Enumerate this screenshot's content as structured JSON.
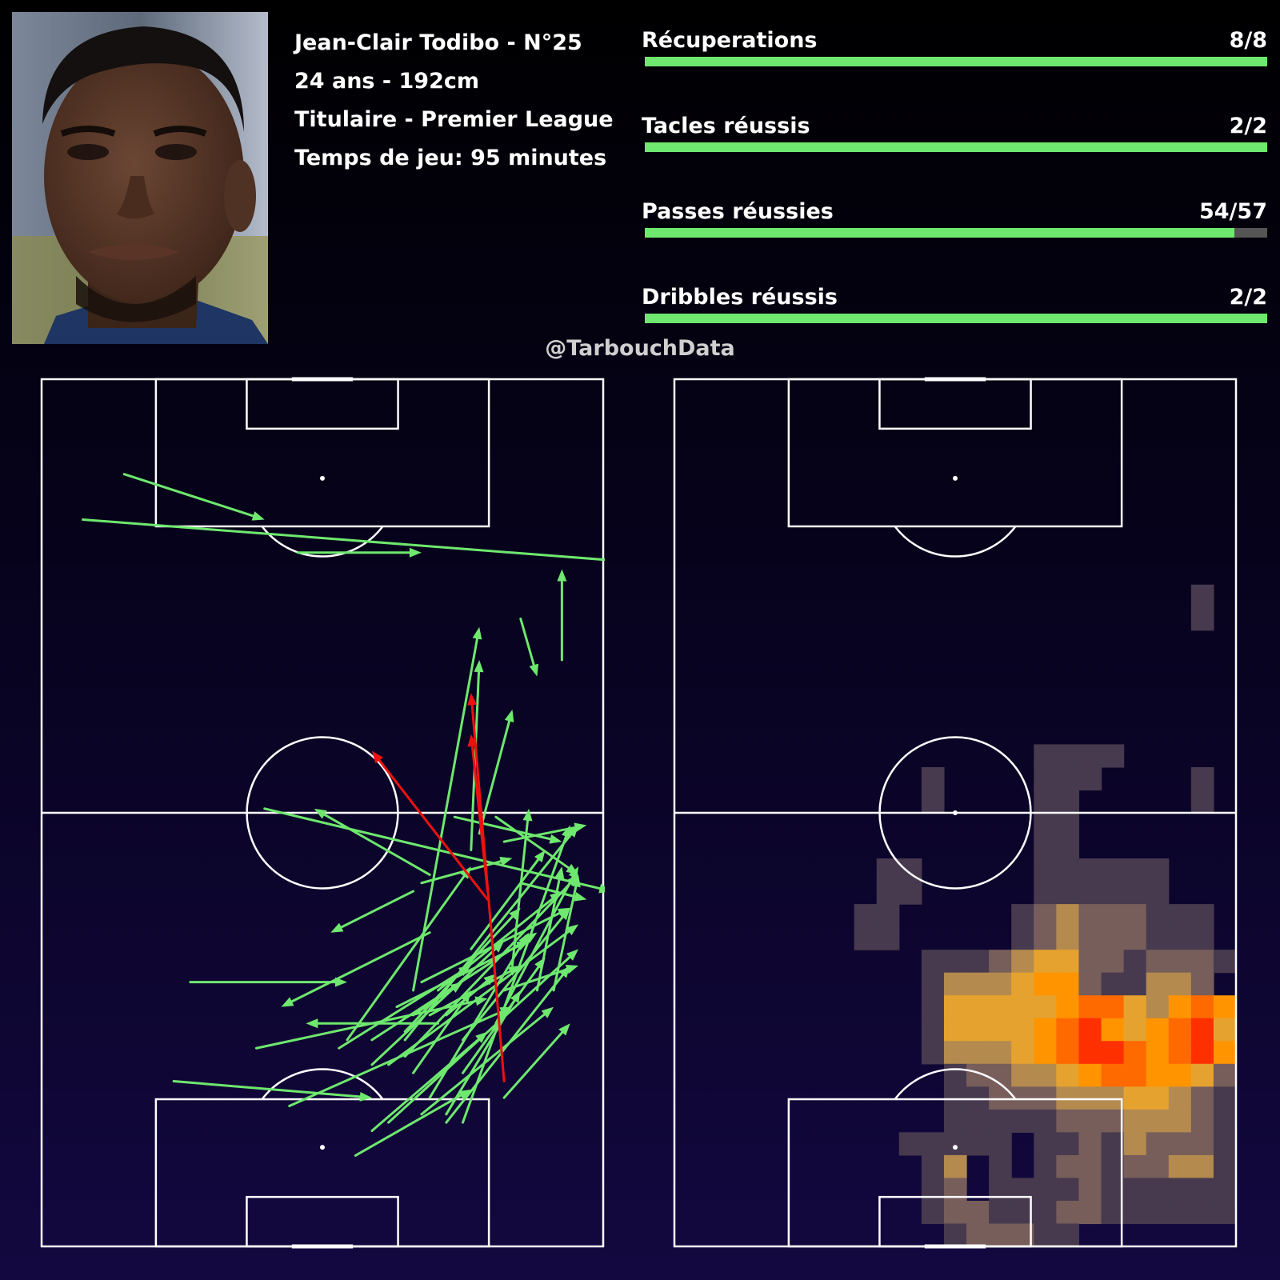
{
  "player": {
    "line1": "Jean-Clair Todibo - N°25",
    "line2": "24 ans - 192cm",
    "line3": "Titulaire - Premier League",
    "line4": "Temps de jeu: 95 minutes"
  },
  "stats": [
    {
      "label": "Récuperations",
      "value": "8/8",
      "fraction": 1.0
    },
    {
      "label": "Tacles réussis",
      "value": "2/2",
      "fraction": 1.0
    },
    {
      "label": "Passes réussies",
      "value": "54/57",
      "fraction": 0.947
    },
    {
      "label": "Dribbles réussis",
      "value": "2/2",
      "fraction": 1.0
    }
  ],
  "watermark": "@TarbouchData",
  "colors": {
    "success": "#6ee86e",
    "fail": "#ee1111",
    "track": "#555555",
    "pitch_lines": "#ffffff"
  },
  "chart_data": [
    {
      "type": "pass-map",
      "pitch": "vertical, 68 x 105, attacking upward",
      "successful_passes": [
        [
          5,
          17,
          70,
          22
        ],
        [
          10,
          11.5,
          27,
          17
        ],
        [
          31,
          21,
          46,
          21
        ],
        [
          27,
          52,
          69,
          62
        ],
        [
          47,
          60,
          33,
          52
        ],
        [
          47,
          67,
          29,
          76
        ],
        [
          18,
          73,
          37,
          73
        ],
        [
          48,
          78,
          32,
          78
        ],
        [
          26,
          81,
          54,
          75
        ],
        [
          16,
          85,
          40,
          87
        ],
        [
          38,
          94,
          52,
          86
        ],
        [
          53,
          55,
          57,
          40
        ],
        [
          52,
          57,
          53,
          34
        ],
        [
          58,
          29,
          60,
          36
        ],
        [
          63,
          34,
          63,
          23
        ],
        [
          45,
          74,
          53,
          30
        ],
        [
          45,
          62,
          35,
          67
        ],
        [
          45,
          77,
          51,
          73
        ],
        [
          46,
          61,
          57,
          58
        ],
        [
          49,
          77,
          55,
          72
        ],
        [
          50,
          53,
          63,
          56
        ],
        [
          55,
          53,
          65,
          60
        ],
        [
          56,
          56,
          66,
          54
        ],
        [
          58,
          61,
          66,
          63
        ],
        [
          43,
          76,
          59,
          68
        ],
        [
          46,
          73,
          64,
          64
        ],
        [
          40,
          83,
          56,
          68
        ],
        [
          51,
          80,
          64,
          64
        ],
        [
          36,
          81,
          52,
          71
        ],
        [
          40,
          80,
          60,
          67
        ],
        [
          44,
          82,
          65,
          60
        ],
        [
          37,
          80,
          52,
          59
        ],
        [
          42,
          83,
          65,
          66
        ],
        [
          52,
          69,
          61,
          57
        ],
        [
          47,
          77,
          58,
          71
        ],
        [
          44,
          79,
          58,
          64
        ],
        [
          47,
          87,
          59,
          67
        ],
        [
          49,
          89,
          58,
          74
        ],
        [
          45,
          84,
          52,
          74
        ],
        [
          40,
          91,
          54,
          79
        ],
        [
          42,
          90,
          65,
          69
        ],
        [
          46,
          89,
          62,
          76
        ],
        [
          51,
          84,
          61,
          70
        ],
        [
          30,
          88,
          57,
          76
        ],
        [
          44,
          80,
          65,
          54
        ],
        [
          48,
          74,
          63,
          62
        ],
        [
          49,
          90,
          64,
          71
        ],
        [
          51,
          90,
          64,
          54
        ],
        [
          56,
          87,
          64,
          78
        ],
        [
          56,
          74,
          65,
          71
        ],
        [
          55,
          78,
          65,
          59
        ],
        [
          62,
          74,
          65,
          60
        ],
        [
          60,
          74,
          63,
          59
        ],
        [
          57,
          71,
          59,
          52
        ]
      ],
      "failed_passes": [
        [
          54,
          62,
          52,
          43
        ],
        [
          56,
          85,
          52,
          38
        ],
        [
          54,
          63,
          40,
          45
        ]
      ]
    },
    {
      "type": "heatmap",
      "pitch": "vertical, 68 x 105, attacking upward",
      "grid": {
        "cols": 25,
        "rows": 38
      },
      "scale": [
        "#473a4e",
        "#775e5b",
        "#b48a4f",
        "#e6a22e",
        "#ff9400",
        "#ff6a00",
        "#ff3000",
        "#ff0000"
      ],
      "cells": [
        [
          23,
          9,
          1
        ],
        [
          23,
          10,
          1
        ],
        [
          16,
          16,
          1
        ],
        [
          17,
          16,
          1
        ],
        [
          18,
          16,
          1
        ],
        [
          19,
          16,
          1
        ],
        [
          16,
          17,
          1
        ],
        [
          17,
          17,
          1
        ],
        [
          18,
          17,
          1
        ],
        [
          11,
          17,
          1
        ],
        [
          23,
          17,
          1
        ],
        [
          16,
          18,
          1
        ],
        [
          17,
          18,
          1
        ],
        [
          11,
          18,
          1
        ],
        [
          23,
          18,
          1
        ],
        [
          16,
          19,
          1
        ],
        [
          17,
          19,
          1
        ],
        [
          16,
          20,
          1
        ],
        [
          17,
          20,
          1
        ],
        [
          16,
          21,
          1
        ],
        [
          17,
          21,
          1
        ],
        [
          18,
          21,
          1
        ],
        [
          19,
          21,
          1
        ],
        [
          20,
          21,
          1
        ],
        [
          21,
          21,
          1
        ],
        [
          9,
          21,
          1
        ],
        [
          10,
          21,
          1
        ],
        [
          16,
          22,
          1
        ],
        [
          17,
          22,
          1
        ],
        [
          18,
          22,
          1
        ],
        [
          19,
          22,
          1
        ],
        [
          20,
          22,
          1
        ],
        [
          21,
          22,
          1
        ],
        [
          9,
          22,
          1
        ],
        [
          10,
          22,
          1
        ],
        [
          15,
          23,
          1
        ],
        [
          16,
          23,
          2
        ],
        [
          17,
          23,
          3
        ],
        [
          18,
          23,
          2
        ],
        [
          19,
          23,
          2
        ],
        [
          20,
          23,
          2
        ],
        [
          21,
          23,
          1
        ],
        [
          22,
          23,
          1
        ],
        [
          23,
          23,
          1
        ],
        [
          8,
          23,
          1
        ],
        [
          9,
          23,
          1
        ],
        [
          15,
          24,
          1
        ],
        [
          16,
          24,
          2
        ],
        [
          17,
          24,
          3
        ],
        [
          18,
          24,
          2
        ],
        [
          19,
          24,
          2
        ],
        [
          20,
          24,
          2
        ],
        [
          21,
          24,
          1
        ],
        [
          22,
          24,
          1
        ],
        [
          23,
          24,
          1
        ],
        [
          8,
          24,
          1
        ],
        [
          9,
          24,
          1
        ],
        [
          11,
          25,
          1
        ],
        [
          12,
          25,
          1
        ],
        [
          13,
          25,
          1
        ],
        [
          14,
          25,
          2
        ],
        [
          15,
          25,
          3
        ],
        [
          16,
          25,
          4
        ],
        [
          17,
          25,
          4
        ],
        [
          18,
          25,
          2
        ],
        [
          19,
          25,
          2
        ],
        [
          20,
          25,
          1
        ],
        [
          21,
          25,
          2
        ],
        [
          22,
          25,
          2
        ],
        [
          23,
          25,
          2
        ],
        [
          24,
          25,
          1
        ],
        [
          11,
          26,
          1
        ],
        [
          12,
          26,
          3
        ],
        [
          13,
          26,
          3
        ],
        [
          14,
          26,
          3
        ],
        [
          15,
          26,
          4
        ],
        [
          16,
          26,
          5
        ],
        [
          17,
          26,
          5
        ],
        [
          18,
          26,
          2
        ],
        [
          19,
          26,
          1
        ],
        [
          20,
          26,
          1
        ],
        [
          21,
          26,
          3
        ],
        [
          22,
          26,
          3
        ],
        [
          23,
          26,
          2
        ],
        [
          11,
          27,
          1
        ],
        [
          12,
          27,
          4
        ],
        [
          13,
          27,
          4
        ],
        [
          14,
          27,
          4
        ],
        [
          15,
          27,
          4
        ],
        [
          16,
          27,
          4
        ],
        [
          17,
          27,
          5
        ],
        [
          18,
          27,
          6
        ],
        [
          19,
          27,
          6
        ],
        [
          20,
          27,
          4
        ],
        [
          21,
          27,
          3
        ],
        [
          22,
          27,
          5
        ],
        [
          23,
          27,
          6
        ],
        [
          24,
          27,
          5
        ],
        [
          11,
          28,
          1
        ],
        [
          12,
          28,
          4
        ],
        [
          13,
          28,
          4
        ],
        [
          14,
          28,
          4
        ],
        [
          15,
          28,
          4
        ],
        [
          16,
          28,
          5
        ],
        [
          17,
          28,
          6
        ],
        [
          18,
          28,
          7
        ],
        [
          19,
          28,
          5
        ],
        [
          20,
          28,
          4
        ],
        [
          21,
          28,
          5
        ],
        [
          22,
          28,
          6
        ],
        [
          23,
          28,
          7
        ],
        [
          24,
          28,
          4
        ],
        [
          11,
          29,
          1
        ],
        [
          12,
          29,
          3
        ],
        [
          13,
          29,
          3
        ],
        [
          14,
          29,
          3
        ],
        [
          15,
          29,
          4
        ],
        [
          16,
          29,
          5
        ],
        [
          17,
          29,
          6
        ],
        [
          18,
          29,
          7
        ],
        [
          19,
          29,
          7
        ],
        [
          20,
          29,
          6
        ],
        [
          21,
          29,
          5
        ],
        [
          22,
          29,
          6
        ],
        [
          23,
          29,
          7
        ],
        [
          24,
          29,
          5
        ],
        [
          12,
          30,
          1
        ],
        [
          13,
          30,
          2
        ],
        [
          14,
          30,
          2
        ],
        [
          15,
          30,
          3
        ],
        [
          16,
          30,
          3
        ],
        [
          17,
          30,
          4
        ],
        [
          18,
          30,
          5
        ],
        [
          19,
          30,
          6
        ],
        [
          20,
          30,
          6
        ],
        [
          21,
          30,
          5
        ],
        [
          22,
          30,
          5
        ],
        [
          23,
          30,
          4
        ],
        [
          24,
          30,
          2
        ],
        [
          12,
          31,
          1
        ],
        [
          13,
          31,
          1
        ],
        [
          14,
          31,
          2
        ],
        [
          15,
          31,
          2
        ],
        [
          16,
          31,
          2
        ],
        [
          17,
          31,
          3
        ],
        [
          18,
          31,
          3
        ],
        [
          19,
          31,
          3
        ],
        [
          20,
          31,
          4
        ],
        [
          21,
          31,
          4
        ],
        [
          22,
          31,
          3
        ],
        [
          23,
          31,
          2
        ],
        [
          24,
          31,
          1
        ],
        [
          12,
          32,
          1
        ],
        [
          13,
          32,
          1
        ],
        [
          14,
          32,
          1
        ],
        [
          15,
          32,
          1
        ],
        [
          16,
          32,
          1
        ],
        [
          17,
          32,
          2
        ],
        [
          18,
          32,
          2
        ],
        [
          19,
          32,
          2
        ],
        [
          20,
          32,
          3
        ],
        [
          21,
          32,
          3
        ],
        [
          22,
          32,
          3
        ],
        [
          23,
          32,
          2
        ],
        [
          24,
          32,
          1
        ],
        [
          10,
          33,
          1
        ],
        [
          11,
          33,
          1
        ],
        [
          12,
          33,
          1
        ],
        [
          13,
          33,
          1
        ],
        [
          14,
          33,
          1
        ],
        [
          16,
          33,
          1
        ],
        [
          17,
          33,
          1
        ],
        [
          18,
          33,
          2
        ],
        [
          19,
          33,
          1
        ],
        [
          20,
          33,
          3
        ],
        [
          21,
          33,
          2
        ],
        [
          22,
          33,
          2
        ],
        [
          23,
          33,
          2
        ],
        [
          24,
          33,
          1
        ],
        [
          11,
          34,
          1
        ],
        [
          12,
          34,
          3
        ],
        [
          14,
          34,
          1
        ],
        [
          16,
          34,
          1
        ],
        [
          17,
          34,
          2
        ],
        [
          18,
          34,
          2
        ],
        [
          19,
          34,
          1
        ],
        [
          20,
          34,
          2
        ],
        [
          21,
          34,
          2
        ],
        [
          22,
          34,
          3
        ],
        [
          23,
          34,
          3
        ],
        [
          24,
          34,
          1
        ],
        [
          11,
          35,
          1
        ],
        [
          12,
          35,
          2
        ],
        [
          14,
          35,
          1
        ],
        [
          15,
          35,
          1
        ],
        [
          16,
          35,
          1
        ],
        [
          17,
          35,
          1
        ],
        [
          18,
          35,
          2
        ],
        [
          19,
          35,
          1
        ],
        [
          20,
          35,
          1
        ],
        [
          21,
          35,
          1
        ],
        [
          22,
          35,
          1
        ],
        [
          23,
          35,
          1
        ],
        [
          24,
          35,
          1
        ],
        [
          11,
          36,
          1
        ],
        [
          12,
          36,
          2
        ],
        [
          13,
          36,
          2
        ],
        [
          14,
          36,
          1
        ],
        [
          15,
          36,
          1
        ],
        [
          16,
          36,
          1
        ],
        [
          17,
          36,
          2
        ],
        [
          18,
          36,
          2
        ],
        [
          19,
          36,
          1
        ],
        [
          20,
          36,
          1
        ],
        [
          21,
          36,
          1
        ],
        [
          22,
          36,
          1
        ],
        [
          23,
          36,
          1
        ],
        [
          24,
          36,
          1
        ],
        [
          12,
          37,
          1
        ],
        [
          13,
          37,
          2
        ],
        [
          14,
          37,
          2
        ],
        [
          15,
          37,
          2
        ],
        [
          16,
          37,
          1
        ],
        [
          17,
          37,
          1
        ]
      ]
    }
  ]
}
